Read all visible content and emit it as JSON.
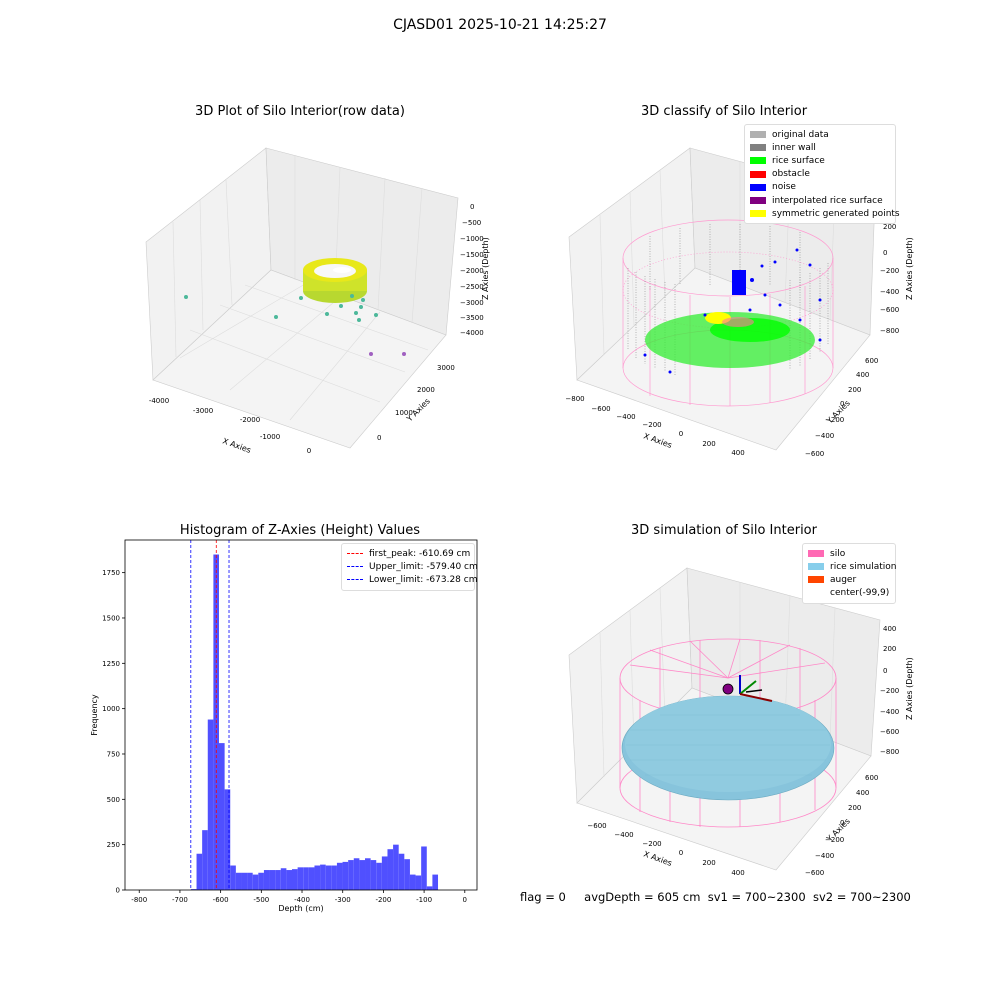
{
  "suptitle": "CJASD01 2025-10-21 14:25:27",
  "footer": {
    "flag": "flag = 0",
    "avg": "avgDepth = 605 cm",
    "sv1": "sv1 = 700~2300",
    "sv2": "sv2 = 700~2300"
  },
  "panel_raw": {
    "title": "3D Plot of Silo Interior(row data)",
    "xlabel": "X Axies",
    "ylabel": "Y Axies",
    "zlabel": "Z Axies (Depth)",
    "x_ticks": [
      "-4000",
      "-3000",
      "-2000",
      "-1000",
      "0"
    ],
    "y_ticks": [
      "0",
      "1000",
      "2000",
      "3000"
    ],
    "z_ticks": [
      "0",
      "−500",
      "−1000",
      "−1500",
      "−2000",
      "−2500",
      "−3000",
      "−3500",
      "−4000"
    ]
  },
  "panel_classify": {
    "title": "3D classify of Silo Interior",
    "xlabel": "X Axies",
    "ylabel": "Y Axies",
    "zlabel": "Z Axies (Depth)",
    "x_ticks": [
      "−800",
      "−600",
      "−400",
      "−200",
      "0",
      "200",
      "400"
    ],
    "y_ticks": [
      "−600",
      "−400",
      "−200",
      "0",
      "200",
      "400",
      "600"
    ],
    "z_ticks": [
      "400",
      "200",
      "0",
      "−200",
      "−400",
      "−600",
      "−800"
    ],
    "legend": [
      {
        "label": "original data",
        "color": "#b0b0b0"
      },
      {
        "label": "inner wall",
        "color": "#808080"
      },
      {
        "label": "rice surface",
        "color": "#00ff00"
      },
      {
        "label": "obstacle",
        "color": "#ff0000"
      },
      {
        "label": "noise",
        "color": "#0000ff"
      },
      {
        "label": "interpolated rice surface",
        "color": "#800080"
      },
      {
        "label": "symmetric generated points",
        "color": "#ffff00"
      }
    ]
  },
  "panel_sim": {
    "title": "3D simulation of Silo Interior",
    "xlabel": "X Axies",
    "ylabel": "Y Axies",
    "zlabel": "Z Axies (Depth)",
    "x_ticks": [
      "−600",
      "−400",
      "−200",
      "0",
      "200",
      "400"
    ],
    "y_ticks": [
      "−600",
      "−400",
      "−200",
      "0",
      "200",
      "400",
      "600"
    ],
    "z_ticks": [
      "400",
      "200",
      "0",
      "−200",
      "−400",
      "−600",
      "−800"
    ],
    "legend": [
      {
        "label": "silo",
        "color": "#ff69b4"
      },
      {
        "label": "rice simulation",
        "color": "#87ceeb"
      },
      {
        "label": "auger",
        "color": "#ff4500"
      },
      {
        "label": "center(-99,9)",
        "color": "#ffffff"
      }
    ]
  },
  "chart_data": {
    "type": "bar",
    "title": "Histogram of Z-Axies (Height) Values",
    "xlabel": "Depth (cm)",
    "ylabel": "Frequency",
    "xlim": [
      -835,
      30
    ],
    "ylim": [
      0,
      1930
    ],
    "x_ticks": [
      -800,
      -700,
      -600,
      -500,
      -400,
      -300,
      -200,
      -100,
      0
    ],
    "y_ticks": [
      0,
      250,
      500,
      750,
      1000,
      1250,
      1500,
      1750
    ],
    "bin_width": 13.8,
    "bin_starts": [
      -673.0,
      -659.2,
      -645.4,
      -631.6,
      -617.8,
      -604.0,
      -590.2,
      -576.4,
      -562.6,
      -548.8,
      -535.0,
      -521.2,
      -507.4,
      -493.6,
      -479.8,
      -466.0,
      -452.2,
      -438.4,
      -424.6,
      -410.8,
      -397.0,
      -383.2,
      -369.4,
      -355.6,
      -341.8,
      -328.0,
      -314.2,
      -300.4,
      -286.6,
      -272.8,
      -259.0,
      -245.2,
      -231.4,
      -217.6,
      -203.8,
      -190.0,
      -176.2,
      -162.4,
      -148.6,
      -134.8,
      -121.0,
      -107.2,
      -93.4,
      -79.6,
      -65.8,
      -52.0,
      -38.2,
      -24.4,
      -10.6
    ],
    "values": [
      5,
      200,
      330,
      940,
      1850,
      810,
      555,
      135,
      95,
      95,
      95,
      85,
      95,
      110,
      110,
      110,
      120,
      110,
      115,
      125,
      125,
      125,
      135,
      140,
      135,
      135,
      150,
      155,
      165,
      175,
      165,
      175,
      165,
      150,
      185,
      225,
      250,
      200,
      170,
      85,
      80,
      240,
      20,
      85,
      0,
      0,
      0,
      0,
      0
    ],
    "vlines": [
      {
        "name": "first_peak: -610.69 cm",
        "x": -610.69,
        "color": "#ff0000"
      },
      {
        "name": "Upper_limit: -579.40 cm",
        "x": -579.4,
        "color": "#0000ff"
      },
      {
        "name": "Lower_limit: -673.28 cm",
        "x": -673.28,
        "color": "#0000ff"
      }
    ],
    "bar_color": "#5050ff",
    "legend_position": "top-right"
  }
}
